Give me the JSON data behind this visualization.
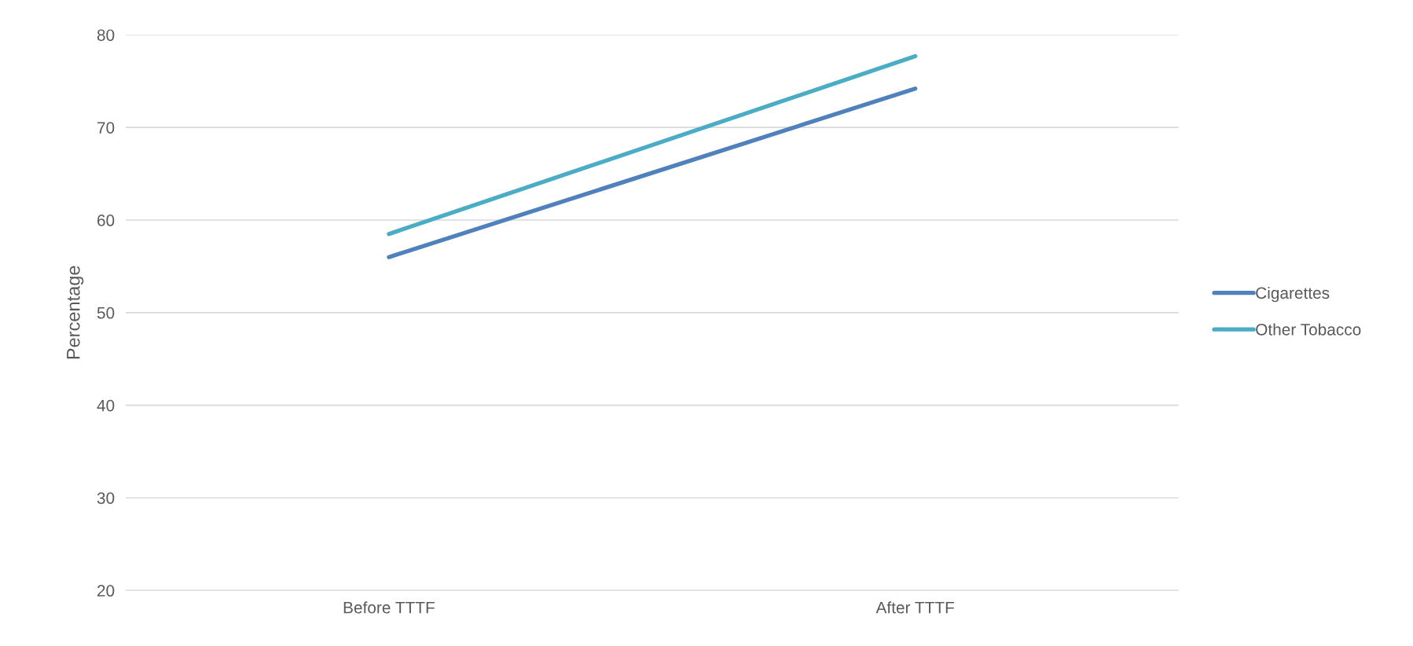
{
  "chart_data": {
    "type": "line",
    "ylabel": "Percentage",
    "categories": [
      "Before TTTF",
      "After TTTF"
    ],
    "series": [
      {
        "name": "Cigarettes",
        "color": "#4f81bd",
        "values": [
          56.0,
          74.2
        ]
      },
      {
        "name": "Other Tobacco",
        "color": "#4bacc6",
        "values": [
          58.5,
          77.7
        ]
      }
    ],
    "ylim": [
      20,
      80
    ],
    "yticks": [
      20,
      30,
      40,
      50,
      60,
      70,
      80
    ],
    "grid": "y",
    "legend": "right",
    "marker": "none",
    "line_style": "solid"
  }
}
